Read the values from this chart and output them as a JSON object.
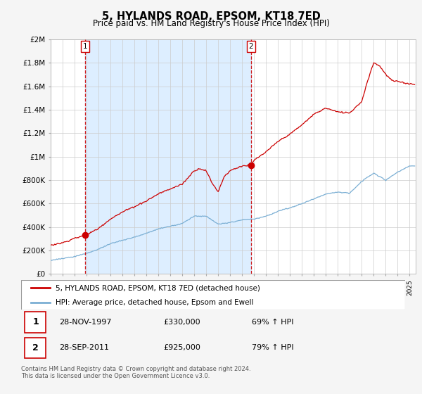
{
  "title": "5, HYLANDS ROAD, EPSOM, KT18 7ED",
  "subtitle": "Price paid vs. HM Land Registry's House Price Index (HPI)",
  "red_label": "5, HYLANDS ROAD, EPSOM, KT18 7ED (detached house)",
  "blue_label": "HPI: Average price, detached house, Epsom and Ewell",
  "transactions": [
    {
      "num": 1,
      "date": "28-NOV-1997",
      "price": "£330,000",
      "hpi": "69% ↑ HPI",
      "year": 1997.9
    },
    {
      "num": 2,
      "date": "28-SEP-2011",
      "price": "£925,000",
      "hpi": "79% ↑ HPI",
      "year": 2011.75
    }
  ],
  "transaction_prices": [
    330000,
    925000
  ],
  "footnote": "Contains HM Land Registry data © Crown copyright and database right 2024.\nThis data is licensed under the Open Government Licence v3.0.",
  "ylim": [
    0,
    2000000
  ],
  "yticks": [
    0,
    200000,
    400000,
    600000,
    800000,
    1000000,
    1200000,
    1400000,
    1600000,
    1800000,
    2000000
  ],
  "ytick_labels": [
    "£0",
    "£200K",
    "£400K",
    "£600K",
    "£800K",
    "£1M",
    "£1.2M",
    "£1.4M",
    "£1.6M",
    "£1.8M",
    "£2M"
  ],
  "xlim_start": 1995.0,
  "xlim_end": 2025.5,
  "bg_color": "#f5f5f5",
  "plot_bg_color": "#ffffff",
  "red_color": "#cc0000",
  "blue_color": "#7bafd4",
  "grid_color": "#cccccc",
  "dashed_color": "#cc0000",
  "shade_color": "#ddeeff",
  "hpi_breakpoints": [
    1995,
    1996,
    1997,
    1998,
    1999,
    2000,
    2001,
    2002,
    2003,
    2004,
    2005,
    2006,
    2007,
    2008,
    2009,
    2010,
    2011,
    2012,
    2013,
    2014,
    2015,
    2016,
    2017,
    2018,
    2019,
    2020,
    2021,
    2022,
    2023,
    2024,
    2025
  ],
  "hpi_values": [
    115000,
    130000,
    148000,
    175000,
    210000,
    255000,
    285000,
    310000,
    345000,
    380000,
    405000,
    430000,
    490000,
    490000,
    420000,
    435000,
    460000,
    465000,
    490000,
    535000,
    565000,
    600000,
    640000,
    680000,
    700000,
    690000,
    790000,
    860000,
    800000,
    870000,
    920000
  ],
  "red_breakpoints": [
    1995,
    1996,
    1997,
    1997.9,
    1999,
    2000,
    2001,
    2002,
    2003,
    2004,
    2005,
    2006,
    2007,
    2007.5,
    2008,
    2008.5,
    2009,
    2009.5,
    2010,
    2011,
    2011.75,
    2012,
    2013,
    2014,
    2015,
    2016,
    2017,
    2018,
    2019,
    2020,
    2021,
    2021.5,
    2022,
    2022.5,
    2023,
    2023.5,
    2024,
    2025
  ],
  "red_values": [
    245000,
    265000,
    305000,
    330000,
    390000,
    470000,
    530000,
    575000,
    620000,
    680000,
    720000,
    760000,
    880000,
    900000,
    880000,
    770000,
    700000,
    830000,
    880000,
    920000,
    925000,
    970000,
    1040000,
    1130000,
    1190000,
    1270000,
    1360000,
    1410000,
    1380000,
    1370000,
    1470000,
    1650000,
    1800000,
    1770000,
    1700000,
    1650000,
    1640000,
    1620000
  ]
}
